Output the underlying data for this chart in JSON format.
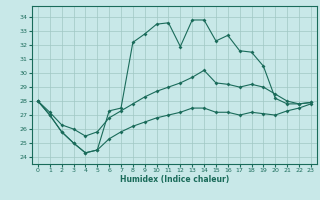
{
  "xlabel": "Humidex (Indice chaleur)",
  "bg_color": "#c8e8e8",
  "line_color": "#1a6b5a",
  "grid_color": "#a0c8c4",
  "xlim": [
    -0.5,
    23.5
  ],
  "ylim": [
    23.5,
    34.8
  ],
  "yticks": [
    24,
    25,
    26,
    27,
    28,
    29,
    30,
    31,
    32,
    33,
    34
  ],
  "xticks": [
    0,
    1,
    2,
    3,
    4,
    5,
    6,
    7,
    8,
    9,
    10,
    11,
    12,
    13,
    14,
    15,
    16,
    17,
    18,
    19,
    20,
    21,
    22,
    23
  ],
  "line1_x": [
    0,
    1,
    2,
    3,
    4,
    5,
    6,
    7,
    8,
    9,
    10,
    11,
    12,
    13,
    14,
    15,
    16,
    17,
    18,
    19,
    20,
    21,
    22,
    23
  ],
  "line1_y": [
    28.0,
    27.0,
    25.8,
    25.0,
    24.3,
    24.5,
    27.3,
    27.5,
    32.2,
    32.8,
    33.5,
    33.6,
    31.9,
    33.8,
    33.8,
    32.3,
    32.7,
    31.6,
    31.5,
    30.5,
    28.2,
    27.8,
    27.8,
    27.9
  ],
  "line2_x": [
    0,
    1,
    2,
    3,
    4,
    5,
    6,
    7,
    8,
    9,
    10,
    11,
    12,
    13,
    14,
    15,
    16,
    17,
    18,
    19,
    20,
    21,
    22,
    23
  ],
  "line2_y": [
    28.0,
    27.2,
    26.3,
    26.0,
    25.5,
    25.8,
    26.8,
    27.3,
    27.8,
    28.3,
    28.7,
    29.0,
    29.3,
    29.7,
    30.2,
    29.3,
    29.2,
    29.0,
    29.2,
    29.0,
    28.5,
    28.0,
    27.8,
    27.9
  ],
  "line3_x": [
    0,
    1,
    2,
    3,
    4,
    5,
    6,
    7,
    8,
    9,
    10,
    11,
    12,
    13,
    14,
    15,
    16,
    17,
    18,
    19,
    20,
    21,
    22,
    23
  ],
  "line3_y": [
    28.0,
    27.0,
    25.8,
    25.0,
    24.3,
    24.5,
    25.3,
    25.8,
    26.2,
    26.5,
    26.8,
    27.0,
    27.2,
    27.5,
    27.5,
    27.2,
    27.2,
    27.0,
    27.2,
    27.1,
    27.0,
    27.3,
    27.5,
    27.8
  ]
}
